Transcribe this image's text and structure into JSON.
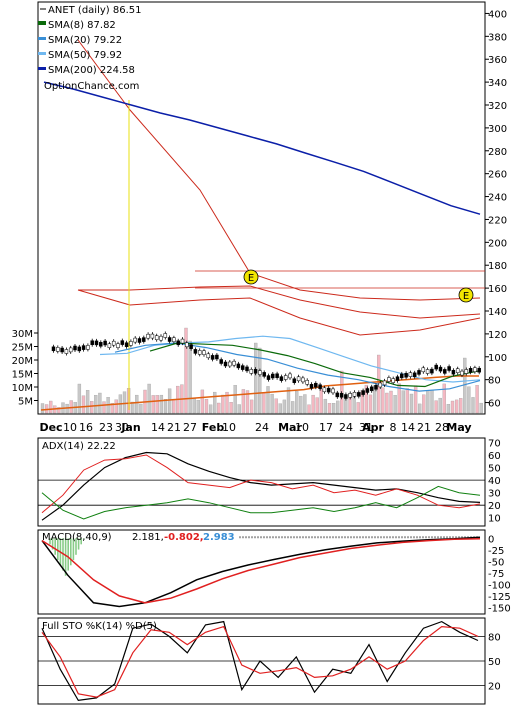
{
  "colors": {
    "sma8": "#0a6a0a",
    "sma20": "#3a8fd6",
    "sma50": "#6fb8f0",
    "sma200": "#0b1fa8",
    "bb": "#cc2a1c",
    "price_up": "#ffffff",
    "price_down": "#000000",
    "vol_up": "#f4b8c2",
    "vol_down": "#c8c8c8",
    "vol_avg": "#e06010",
    "adx": "#000000",
    "pdi": "#e02020",
    "mdi": "#108010",
    "macd": "#000000",
    "signal": "#e02020",
    "hist": "#88cc88",
    "sto_k": "#000000",
    "sto_d": "#e02020",
    "earnings": "#f2e600",
    "yellow_line": "#e8e010"
  },
  "chart_data": [
    {
      "type": "line",
      "panel": "price",
      "legend": [
        {
          "key": "price",
          "label": "ANET (daily) 86.51"
        },
        {
          "key": "sma8",
          "label": "SMA(8) 87.82"
        },
        {
          "key": "sma20",
          "label": "SMA(20) 79.22"
        },
        {
          "key": "sma50",
          "label": "SMA(50) 79.92"
        },
        {
          "key": "sma200",
          "label": "SMA(200) 224.58"
        }
      ],
      "watermark": "OptionChance.com",
      "y_ticks": [
        400,
        380,
        360,
        340,
        320,
        300,
        280,
        260,
        240,
        220,
        200,
        180,
        160,
        140,
        120,
        100,
        80,
        60
      ],
      "ylim": [
        50,
        410
      ],
      "volume_ticks": [
        "30M",
        "25M",
        "20M",
        "15M",
        "10M",
        "5M"
      ],
      "x_labels": [
        "Dec",
        "10",
        "16",
        "23",
        "30",
        "Jan",
        "14",
        "21",
        "27",
        "Feb",
        "10",
        "24",
        "Mar",
        "10",
        "17",
        "24",
        "31",
        "Apr",
        "8",
        "14",
        "21",
        "28",
        "May"
      ],
      "earnings_marker": "E",
      "series": [
        {
          "name": "SMA(200)",
          "values": [
            340,
            334,
            327,
            320,
            313,
            307,
            300,
            293,
            286,
            278,
            270,
            262,
            252,
            242,
            232,
            224.58
          ]
        },
        {
          "name": "SMA(50)",
          "values": [
            102,
            103,
            110,
            112,
            113,
            116,
            118,
            116,
            108,
            100,
            92,
            86,
            80,
            78,
            79.92
          ]
        },
        {
          "name": "SMA(20)",
          "values": [
            104,
            110,
            112,
            108,
            102,
            98,
            90,
            84,
            80,
            74,
            70,
            72,
            79.22
          ]
        },
        {
          "name": "SMA(8)",
          "values": [
            105,
            112,
            111,
            110,
            106,
            101,
            94,
            86,
            82,
            75,
            74,
            83,
            87.82
          ]
        },
        {
          "name": "ANET",
          "values": [
            107,
            106,
            112,
            110,
            115,
            118,
            113,
            103,
            96,
            90,
            84,
            82,
            77,
            70,
            66,
            74,
            80,
            86,
            90,
            88,
            86.51
          ]
        }
      ]
    },
    {
      "type": "line",
      "panel": "adx",
      "label": "ADX(14) 22.22",
      "y_ticks": [
        70,
        60,
        50,
        40,
        30,
        20,
        10
      ],
      "ylim": [
        5,
        72
      ],
      "series": [
        {
          "name": "ADX",
          "values": [
            8,
            20,
            36,
            50,
            58,
            62,
            61,
            53,
            47,
            42,
            38,
            36,
            37,
            38,
            36,
            34,
            32,
            33,
            30,
            26,
            23,
            22.22
          ]
        },
        {
          "name": "+DI",
          "values": [
            14,
            28,
            48,
            56,
            57,
            60,
            50,
            38,
            36,
            34,
            40,
            38,
            33,
            36,
            30,
            32,
            28,
            33,
            28,
            20,
            18,
            21
          ]
        },
        {
          "name": "-DI",
          "values": [
            30,
            16,
            9,
            15,
            18,
            20,
            22,
            25,
            22,
            18,
            14,
            14,
            16,
            18,
            15,
            18,
            22,
            18,
            26,
            35,
            30,
            28
          ]
        }
      ]
    },
    {
      "type": "line",
      "panel": "macd",
      "label": "MACD(8,40,9)",
      "values_text": [
        "2.181,",
        "-0.802,",
        "2.983"
      ],
      "y_ticks": [
        0,
        -25,
        -50,
        -75,
        -100,
        -125,
        -150
      ],
      "ylim": [
        -160,
        5
      ],
      "series": [
        {
          "name": "MACD",
          "values": [
            -5,
            -80,
            -140,
            -148,
            -140,
            -118,
            -90,
            -72,
            -58,
            -46,
            -35,
            -25,
            -17,
            -10,
            -6,
            -3,
            -1,
            2.181
          ]
        },
        {
          "name": "Signal",
          "values": [
            -5,
            -40,
            -90,
            -125,
            -140,
            -130,
            -110,
            -88,
            -70,
            -56,
            -42,
            -32,
            -22,
            -15,
            -9,
            -5,
            -2,
            -0.802
          ]
        }
      ]
    },
    {
      "type": "line",
      "panel": "stochastic",
      "label": "Full STO %K(14) %D(5)",
      "y_ticks": [
        80,
        50,
        20
      ],
      "ylim": [
        0,
        100
      ],
      "series": [
        {
          "name": "%K",
          "values": [
            90,
            40,
            2,
            5,
            22,
            90,
            95,
            80,
            60,
            94,
            98,
            15,
            50,
            30,
            55,
            12,
            40,
            35,
            70,
            25,
            60,
            90,
            98,
            85,
            75
          ]
        },
        {
          "name": "%D",
          "values": [
            85,
            55,
            10,
            6,
            15,
            60,
            88,
            85,
            70,
            85,
            92,
            45,
            35,
            38,
            42,
            30,
            32,
            40,
            55,
            40,
            50,
            75,
            92,
            90,
            80
          ]
        }
      ]
    }
  ]
}
